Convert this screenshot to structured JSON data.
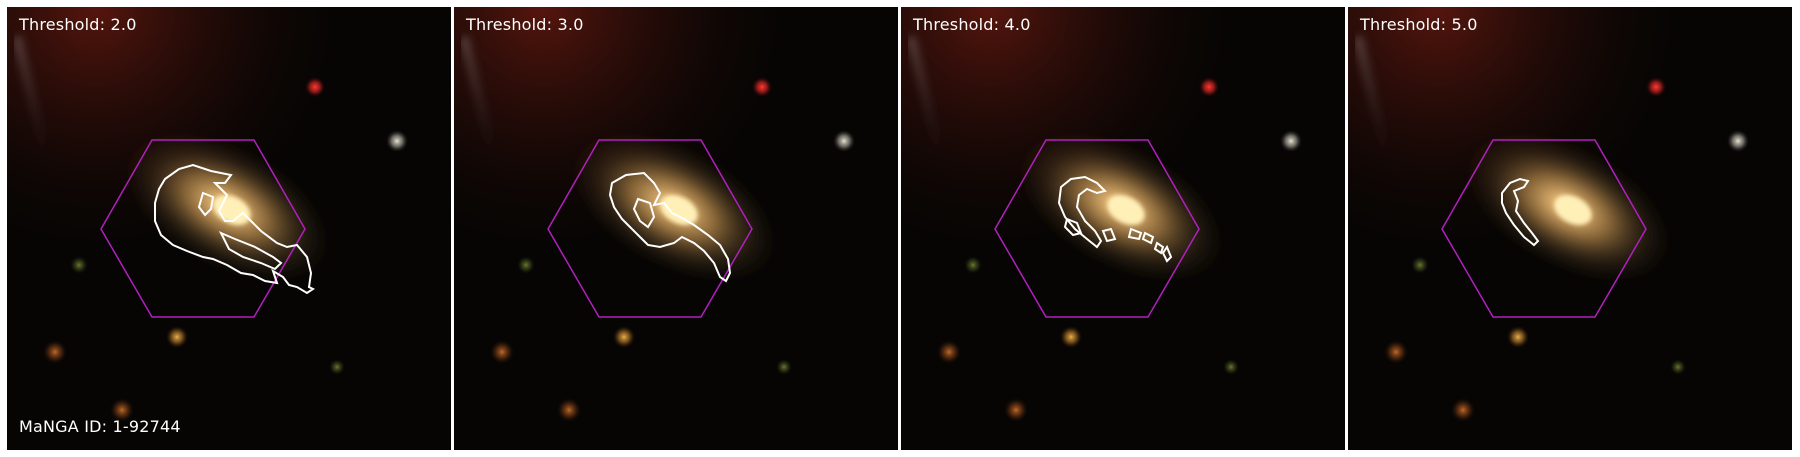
{
  "galaxy": {
    "manga_id_label": "MaNGA ID: 1-92744"
  },
  "panels": [
    {
      "threshold_label": "Threshold: 2.0",
      "threshold": 2.0
    },
    {
      "threshold_label": "Threshold: 3.0",
      "threshold": 3.0
    },
    {
      "threshold_label": "Threshold: 4.0",
      "threshold": 4.0
    },
    {
      "threshold_label": "Threshold: 5.0",
      "threshold": 5.0
    }
  ],
  "colors": {
    "hexagon": "#b21fbf",
    "contour": "#ffffff",
    "label_text": "#ffffff"
  }
}
